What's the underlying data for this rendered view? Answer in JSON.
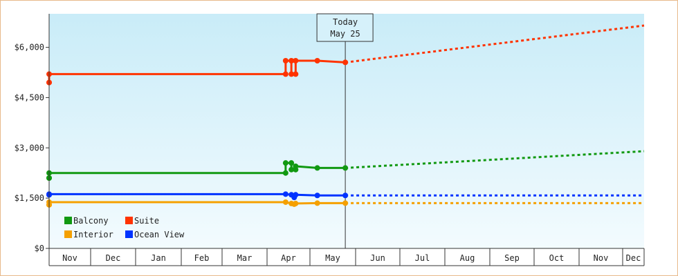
{
  "chart_data": {
    "type": "line",
    "title": "",
    "xlabel": "",
    "ylabel": "",
    "ylim": [
      0,
      7000
    ],
    "yticks": [
      {
        "v": 0,
        "label": "$0"
      },
      {
        "v": 1500,
        "label": "$1,500"
      },
      {
        "v": 3000,
        "label": "$3,000"
      },
      {
        "v": 4500,
        "label": "$4,500"
      },
      {
        "v": 6000,
        "label": "$6,000"
      }
    ],
    "months": [
      "Nov",
      "Dec",
      "Jan",
      "Feb",
      "Mar",
      "Apr",
      "May",
      "Jun",
      "Jul",
      "Aug",
      "Sep",
      "Oct",
      "Nov",
      "Dec"
    ],
    "today": {
      "line1": "Today",
      "line2": "May 25",
      "x": "May 25"
    },
    "grid": false,
    "legend_position": "bottom-left",
    "series": [
      {
        "name": "Suite",
        "color": "#ff3300",
        "history": [
          [
            "Oct 21",
            4950
          ],
          [
            "Nov 1",
            4950
          ],
          [
            "Nov 1",
            5200
          ],
          [
            "Apr 14",
            5200
          ],
          [
            "Apr 14",
            5600
          ],
          [
            "Apr 18",
            5600
          ],
          [
            "Apr 18",
            5200
          ],
          [
            "Apr 21",
            5200
          ],
          [
            "Apr 21",
            5600
          ],
          [
            "May 6",
            5600
          ],
          [
            "May 25",
            5550
          ]
        ],
        "forecast": [
          [
            "May 25",
            5550
          ],
          [
            "Dec 31",
            6650
          ]
        ]
      },
      {
        "name": "Balcony",
        "color": "#119911",
        "history": [
          [
            "Oct 21",
            2100
          ],
          [
            "Nov 1",
            2100
          ],
          [
            "Nov 1",
            2250
          ],
          [
            "Apr 14",
            2250
          ],
          [
            "Apr 14",
            2550
          ],
          [
            "Apr 18",
            2550
          ],
          [
            "Apr 18",
            2350
          ],
          [
            "Apr 21",
            2350
          ],
          [
            "Apr 21",
            2450
          ],
          [
            "May 6",
            2400
          ],
          [
            "May 25",
            2400
          ]
        ],
        "forecast": [
          [
            "May 25",
            2400
          ],
          [
            "Dec 31",
            2900
          ]
        ]
      },
      {
        "name": "Ocean View",
        "color": "#0033ff",
        "history": [
          [
            "Oct 21",
            1600
          ],
          [
            "Nov 1",
            1600
          ],
          [
            "Nov 1",
            1620
          ],
          [
            "Apr 14",
            1620
          ],
          [
            "Apr 18",
            1600
          ],
          [
            "Apr 20",
            1520
          ],
          [
            "Apr 21",
            1600
          ],
          [
            "May 6",
            1580
          ],
          [
            "May 25",
            1580
          ]
        ],
        "forecast": [
          [
            "May 25",
            1580
          ],
          [
            "Dec 31",
            1580
          ]
        ]
      },
      {
        "name": "Interior",
        "color": "#f5a000",
        "history": [
          [
            "Oct 21",
            1300
          ],
          [
            "Nov 1",
            1300
          ],
          [
            "Nov 1",
            1380
          ],
          [
            "Apr 14",
            1380
          ],
          [
            "Apr 18",
            1340
          ],
          [
            "Apr 20",
            1320
          ],
          [
            "Apr 21",
            1340
          ],
          [
            "May 6",
            1350
          ],
          [
            "May 25",
            1350
          ]
        ],
        "forecast": [
          [
            "May 25",
            1350
          ],
          [
            "Dec 31",
            1350
          ]
        ]
      }
    ],
    "legend_order": [
      "Balcony",
      "Suite",
      "Interior",
      "Ocean View"
    ]
  }
}
